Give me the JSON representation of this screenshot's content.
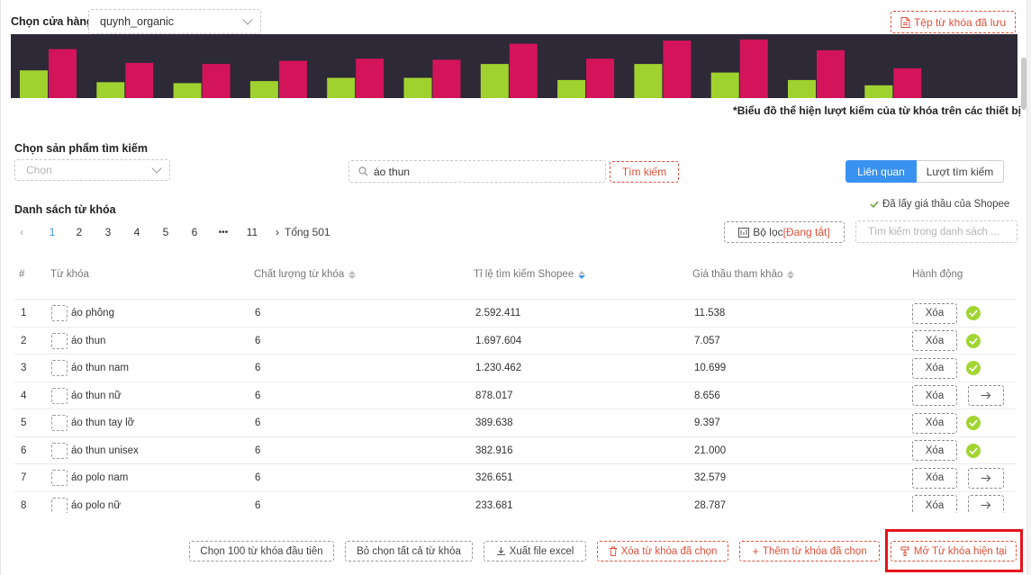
{
  "store": {
    "label": "Chọn cửa hàng",
    "value": "quynh_organic"
  },
  "saved_keywords_button": "Tệp từ khóa đã lưu",
  "chart": {
    "note": "*Biểu đồ thể hiện lượt kiếm của từ khóa trên các thiết bị",
    "colors": {
      "series_a": "#9fd22f",
      "series_b": "#d3145a",
      "background": "#2e2937"
    }
  },
  "chart_data": {
    "type": "bar",
    "series": [
      {
        "values": [
          26,
          15,
          14,
          16,
          19,
          19,
          32,
          17,
          32,
          24,
          17,
          12
        ]
      },
      {
        "values": [
          46,
          33,
          32,
          35,
          37,
          36,
          51,
          37,
          54,
          55,
          45,
          28
        ]
      }
    ],
    "ylim": [
      0,
      60
    ]
  },
  "product_search": {
    "label": "Chọn sản phẩm tìm kiếm",
    "placeholder": "Chọn"
  },
  "search": {
    "value": "áo thun",
    "button": "Tìm kiếm"
  },
  "mode_tabs": {
    "active": "Liên quan",
    "inactive": "Lượt tìm kiếm"
  },
  "list_title": "Danh sách từ khóa",
  "shopee_bid_status": "Đã lấy giá thầu của Shopee",
  "pagination": {
    "pages": [
      "1",
      "2",
      "3",
      "4",
      "5",
      "6",
      "•••",
      "11"
    ],
    "current": "1",
    "total": "Tổng 501"
  },
  "filter_button": "Bộ lọc ",
  "filter_state": "[Đang tắt]",
  "list_search_placeholder": "Tìm kiếm trong danh sách ...",
  "table": {
    "headers": {
      "index": "#",
      "keyword": "Từ khóa",
      "quality": "Chất lượng từ khóa",
      "ratio": "Tỉ lệ tìm kiếm Shopee",
      "bid": "Giá thầu tham khảo",
      "action": "Hành động"
    },
    "delete_label": "Xóa",
    "rows": [
      {
        "index": "1",
        "keyword": "áo phông",
        "quality": "6",
        "ratio": "2.592.411",
        "bid": "11.538",
        "status": "added"
      },
      {
        "index": "2",
        "keyword": "áo thun",
        "quality": "6",
        "ratio": "1.697.604",
        "bid": "7.057",
        "status": "added"
      },
      {
        "index": "3",
        "keyword": "áo thun nam",
        "quality": "6",
        "ratio": "1.230.462",
        "bid": "10.699",
        "status": "added"
      },
      {
        "index": "4",
        "keyword": "áo thun nữ",
        "quality": "6",
        "ratio": "878.017",
        "bid": "8.656",
        "status": "add"
      },
      {
        "index": "5",
        "keyword": "áo thun tay lỡ",
        "quality": "6",
        "ratio": "389.638",
        "bid": "9.397",
        "status": "added"
      },
      {
        "index": "6",
        "keyword": "áo thun unisex",
        "quality": "6",
        "ratio": "382.916",
        "bid": "21.000",
        "status": "added"
      },
      {
        "index": "7",
        "keyword": "áo polo nam",
        "quality": "6",
        "ratio": "326.651",
        "bid": "32.579",
        "status": "add"
      },
      {
        "index": "8",
        "keyword": "áo polo nữ",
        "quality": "6",
        "ratio": "233.681",
        "bid": "28.787",
        "status": "add"
      }
    ]
  },
  "footer": {
    "select_first_100": "Chọn 100 từ khóa đầu tiên",
    "deselect_all": "Bỏ chọn tất cả từ khóa",
    "export_excel": "Xuất file excel",
    "delete_selected": "Xóa từ khóa đã chọn",
    "add_selected": "Thêm từ khóa đã chọn",
    "open_current": "Mở Từ khóa hiện tại"
  }
}
